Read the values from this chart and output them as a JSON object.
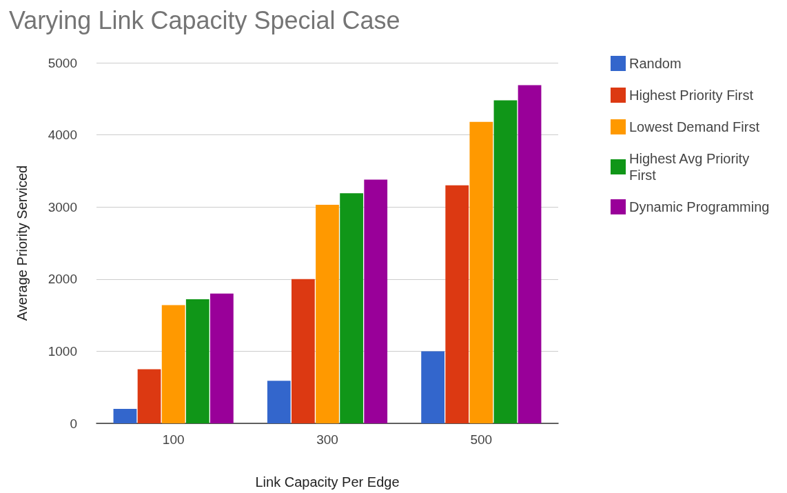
{
  "chart_data": {
    "type": "bar",
    "title": "Varying Link Capacity Special Case",
    "xlabel": "Link Capacity Per Edge",
    "ylabel": "Average Priority Serviced",
    "categories": [
      "100",
      "300",
      "500"
    ],
    "series": [
      {
        "name": "Random",
        "color": "#3366cc",
        "values": [
          200,
          590,
          1000
        ]
      },
      {
        "name": "Highest Priority First",
        "color": "#dc3912",
        "values": [
          750,
          2000,
          3300
        ]
      },
      {
        "name": "Lowest Demand First",
        "color": "#ff9900",
        "values": [
          1640,
          3030,
          4180
        ]
      },
      {
        "name": "Highest Avg Priority First",
        "color": "#109618",
        "values": [
          1720,
          3190,
          4480
        ]
      },
      {
        "name": "Dynamic Programming",
        "color": "#990099",
        "values": [
          1800,
          3380,
          4690
        ]
      }
    ],
    "ylim": [
      0,
      5000
    ],
    "yticks": [
      0,
      1000,
      2000,
      3000,
      4000,
      5000
    ],
    "grid": "y",
    "legend": "right"
  }
}
